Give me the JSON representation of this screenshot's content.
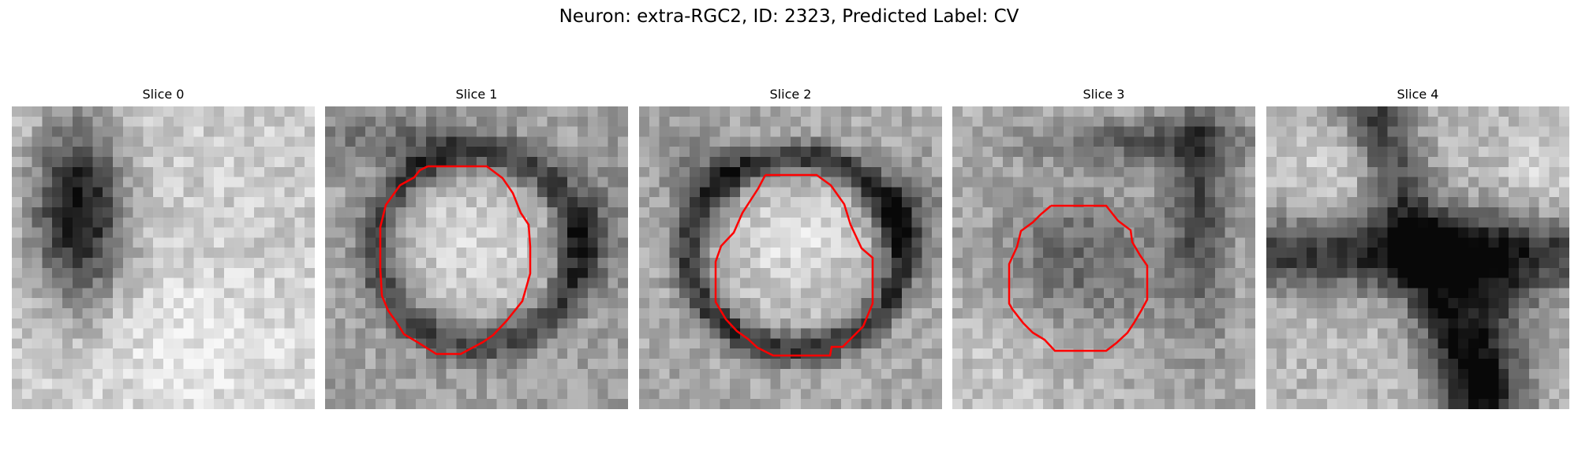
{
  "figure": {
    "title": "Neuron: extra-RGC2, ID: 2323, Predicted Label: CV"
  },
  "panels": [
    {
      "title": "Slice 0",
      "has_contour": false,
      "pattern": "blob-left",
      "seed": 11
    },
    {
      "title": "Slice 1",
      "has_contour": true,
      "pattern": "cell-center",
      "seed": 23
    },
    {
      "title": "Slice 2",
      "has_contour": true,
      "pattern": "cell-ring",
      "seed": 37
    },
    {
      "title": "Slice 3",
      "has_contour": true,
      "pattern": "cell-dark",
      "seed": 41
    },
    {
      "title": "Slice 4",
      "has_contour": false,
      "pattern": "dark-cross",
      "seed": 53
    }
  ],
  "colors": {
    "contour": "#ff0000",
    "background": "#ffffff",
    "text": "#000000"
  },
  "colormap": "grayscale"
}
